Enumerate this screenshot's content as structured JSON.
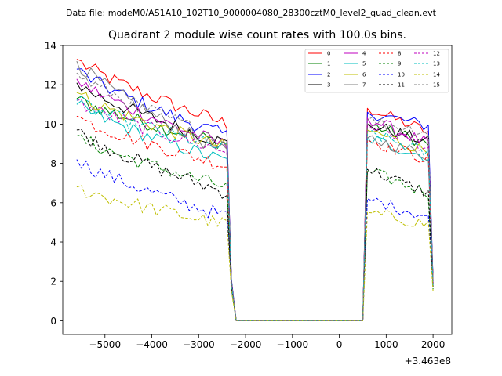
{
  "chart_data": {
    "type": "line",
    "suptitle": "Data file: modeM0/AS1A10_102T10_9000004080_28300cztM0_level2_quad_clean.evt",
    "title": "Quadrant 2 module wise count rates with 100.0s bins.",
    "xlabel": "",
    "ylabel": "",
    "x_offset_label": "+3.463e8",
    "xlim": [
      -5900,
      2400
    ],
    "ylim": [
      -0.7,
      14
    ],
    "xticks": [
      -5000,
      -4000,
      -3000,
      -2000,
      -1000,
      0,
      1000,
      2000
    ],
    "xtick_labels": [
      "−5000",
      "−4000",
      "−3000",
      "−2000",
      "−1000",
      "0",
      "1000",
      "2000"
    ],
    "yticks": [
      0,
      2,
      4,
      6,
      8,
      10,
      12,
      14
    ],
    "ytick_labels": [
      "0",
      "2",
      "4",
      "6",
      "8",
      "10",
      "12",
      "14"
    ],
    "grid": false,
    "legend_position": "top-right",
    "bin_seconds": 100,
    "gap_x": [
      -2200,
      500
    ],
    "segments": [
      {
        "x_start": -5600,
        "x_end": -2400,
        "edge_x": -2300
      },
      {
        "x_start": 600,
        "x_end": 1900,
        "edge_x": 2000
      }
    ],
    "series": [
      {
        "name": "0",
        "color": "#ff0000",
        "dashed": false,
        "seg1_start": 13.3,
        "seg1_end": 10.0,
        "seg2_start": 10.8,
        "seg2_end": 9.6,
        "edge": 2.0
      },
      {
        "name": "1",
        "color": "#008000",
        "dashed": false,
        "seg1_start": 11.3,
        "seg1_end": 9.0,
        "seg2_start": 10.0,
        "seg2_end": 9.0,
        "edge": 1.9
      },
      {
        "name": "2",
        "color": "#0000ff",
        "dashed": false,
        "seg1_start": 12.8,
        "seg1_end": 9.4,
        "seg2_start": 10.6,
        "seg2_end": 9.9,
        "edge": 2.1
      },
      {
        "name": "3",
        "color": "#000000",
        "dashed": false,
        "seg1_start": 12.1,
        "seg1_end": 9.0,
        "seg2_start": 10.0,
        "seg2_end": 9.1,
        "edge": 2.0
      },
      {
        "name": "4",
        "color": "#bf00bf",
        "dashed": false,
        "seg1_start": 12.3,
        "seg1_end": 8.9,
        "seg2_start": 10.3,
        "seg2_end": 9.0,
        "edge": 1.9
      },
      {
        "name": "5",
        "color": "#00bfbf",
        "dashed": false,
        "seg1_start": 11.0,
        "seg1_end": 8.1,
        "seg2_start": 9.3,
        "seg2_end": 8.3,
        "edge": 1.7
      },
      {
        "name": "6",
        "color": "#bfbf00",
        "dashed": false,
        "seg1_start": 11.6,
        "seg1_end": 8.8,
        "seg2_start": 9.7,
        "seg2_end": 8.6,
        "edge": 1.8
      },
      {
        "name": "7",
        "color": "#808080",
        "dashed": false,
        "seg1_start": 13.2,
        "seg1_end": 8.5,
        "seg2_start": 9.3,
        "seg2_end": 8.4,
        "edge": 1.8
      },
      {
        "name": "8",
        "color": "#ff0000",
        "dashed": true,
        "seg1_start": 10.4,
        "seg1_end": 7.9,
        "seg2_start": 9.2,
        "seg2_end": 8.2,
        "edge": 1.8
      },
      {
        "name": "9",
        "color": "#008000",
        "dashed": true,
        "seg1_start": 9.4,
        "seg1_end": 6.8,
        "seg2_start": 7.6,
        "seg2_end": 6.5,
        "edge": 1.6
      },
      {
        "name": "10",
        "color": "#0000ff",
        "dashed": true,
        "seg1_start": 8.2,
        "seg1_end": 5.3,
        "seg2_start": 6.2,
        "seg2_end": 5.3,
        "edge": 1.7
      },
      {
        "name": "11",
        "color": "#000000",
        "dashed": true,
        "seg1_start": 9.7,
        "seg1_end": 6.5,
        "seg2_start": 7.7,
        "seg2_end": 6.5,
        "edge": 1.7
      },
      {
        "name": "12",
        "color": "#bf00bf",
        "dashed": true,
        "seg1_start": 11.2,
        "seg1_end": 8.6,
        "seg2_start": 10.0,
        "seg2_end": 8.8,
        "edge": 1.9
      },
      {
        "name": "13",
        "color": "#00bfbf",
        "dashed": true,
        "seg1_start": 11.2,
        "seg1_end": 8.7,
        "seg2_start": 9.6,
        "seg2_end": 8.5,
        "edge": 1.8
      },
      {
        "name": "14",
        "color": "#bfbf00",
        "dashed": true,
        "seg1_start": 6.8,
        "seg1_end": 4.9,
        "seg2_start": 5.5,
        "seg2_end": 4.9,
        "edge": 1.5
      },
      {
        "name": "15",
        "color": "#808080",
        "dashed": true,
        "seg1_start": 12.6,
        "seg1_end": 9.2,
        "seg2_start": 10.2,
        "seg2_end": 9.6,
        "edge": 2.0
      }
    ]
  }
}
